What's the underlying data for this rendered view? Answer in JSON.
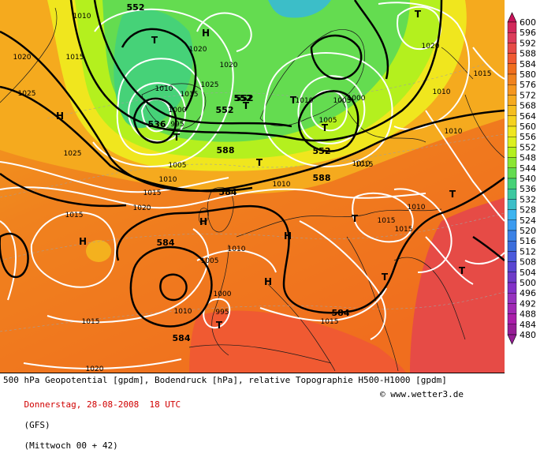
{
  "caption": {
    "line1": "500 hPa Geopotential [gpdm], Bodendruck [hPa], relative Topographie H500-H1000 [gpdm]",
    "date": "Donnerstag, 28-08-2008  18 UTC",
    "model": "(GFS)",
    "forecast": "(Mittwoch 00 + 42)",
    "copyright_symbol": "©",
    "website": "www.wetter3.de"
  },
  "legend": {
    "values": [
      "600",
      "596",
      "592",
      "588",
      "584",
      "580",
      "576",
      "572",
      "568",
      "564",
      "560",
      "556",
      "552",
      "548",
      "544",
      "540",
      "536",
      "532",
      "528",
      "524",
      "520",
      "516",
      "512",
      "508",
      "504",
      "500",
      "496",
      "492",
      "488",
      "484",
      "480"
    ],
    "colors": [
      "#c8145a",
      "#d2285a",
      "#dc3c5a",
      "#e64b46",
      "#f05a32",
      "#f06e1e",
      "#f0821e",
      "#f5961e",
      "#f5aa1e",
      "#f5be1e",
      "#f5d21e",
      "#f0e61e",
      "#dcf01e",
      "#b4f01e",
      "#8ce632",
      "#64dc50",
      "#46d278",
      "#3cc8a0",
      "#3cbec8",
      "#3cb4f0",
      "#3c9bf0",
      "#3c82e6",
      "#3c6edc",
      "#4b5adc",
      "#5a46d2",
      "#6e3cc8",
      "#8232c8",
      "#9632be",
      "#a028b4",
      "#aa1eaa",
      "#961e96"
    ]
  },
  "map": {
    "geopotential_labels": [
      "552",
      "552",
      "552",
      "552",
      "536",
      "588",
      "584",
      "584",
      "584",
      "584",
      "588",
      "552"
    ],
    "pressure_labels": [
      "1010",
      "1015",
      "1020",
      "1025",
      "1025",
      "1020",
      "1015",
      "1010",
      "1005",
      "1000",
      "995",
      "1010",
      "1015",
      "1020",
      "1025",
      "1020",
      "1015",
      "1010",
      "1005",
      "1000",
      "995",
      "1010",
      "1015",
      "1020",
      "1010",
      "1015",
      "1015",
      "1010",
      "1015",
      "1010",
      "1020",
      "1015",
      "1010",
      "1005",
      "1010",
      "1000",
      "1005",
      "1010",
      "1015"
    ],
    "high_marker": "H",
    "low_marker": "T"
  }
}
